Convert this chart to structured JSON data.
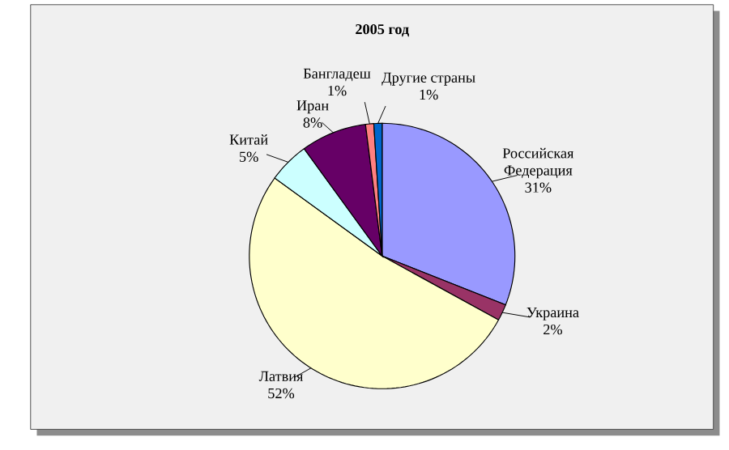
{
  "chart_data": {
    "type": "pie",
    "title": "2005 год",
    "categories": [
      "Российская Федерация",
      "Украина",
      "Латвия",
      "Китай",
      "Иран",
      "Бангладеш",
      "Другие страны"
    ],
    "values": [
      31,
      2,
      52,
      5,
      8,
      1,
      1
    ],
    "value_labels": [
      "31%",
      "2%",
      "52%",
      "5%",
      "8%",
      "1%",
      "1%"
    ],
    "colors": [
      "#9999ff",
      "#993366",
      "#ffffcc",
      "#ccffff",
      "#660066",
      "#ff8080",
      "#0066cc"
    ]
  }
}
